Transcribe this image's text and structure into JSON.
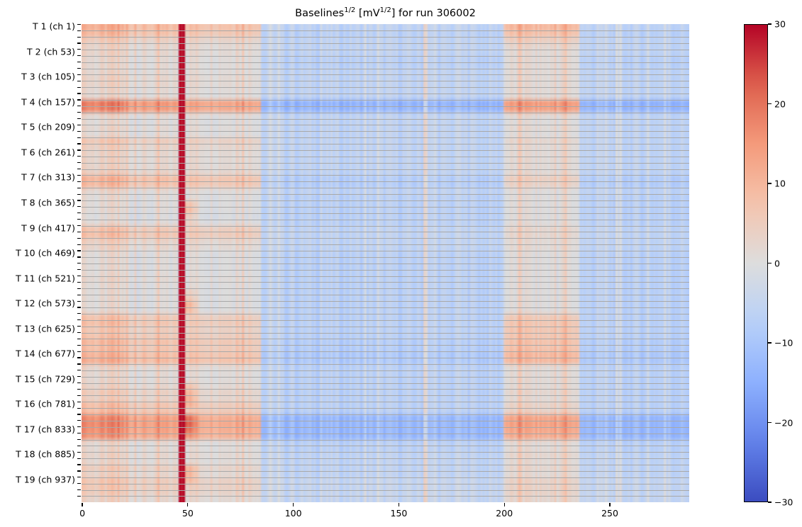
{
  "chart_data": {
    "type": "heatmap",
    "title_parts": {
      "base": "Baselines",
      "exp1": "1/2",
      "mid": " [mV",
      "exp2": "1/2",
      "end": "] for run 306002"
    },
    "title": "Baselines^1/2 [mV^1/2] for run 306002",
    "n_columns": 288,
    "n_channels": 988,
    "channels_per_row_group": 13,
    "xlim": [
      0,
      288
    ],
    "x_ticks": [
      0,
      50,
      100,
      150,
      200,
      250
    ],
    "y_tick_labels": [
      "T 1 (ch 1)",
      "T 2 (ch 53)",
      "T 3 (ch 105)",
      "T 4 (ch 157)",
      "T 5 (ch 209)",
      "T 6 (ch 261)",
      "T 7 (ch 313)",
      "T 8 (ch 365)",
      "T 9 (ch 417)",
      "T 10 (ch 469)",
      "T 11 (ch 521)",
      "T 12 (ch 573)",
      "T 13 (ch 625)",
      "T 14 (ch 677)",
      "T 15 (ch 729)",
      "T 16 (ch 781)",
      "T 17 (ch 833)",
      "T 18 (ch 885)",
      "T 19 (ch 937)"
    ],
    "y_tick_channels": [
      1,
      53,
      105,
      157,
      209,
      261,
      313,
      365,
      417,
      469,
      521,
      573,
      625,
      677,
      729,
      781,
      833,
      885,
      937
    ],
    "colorbar": {
      "cmap": "coolwarm",
      "vmin": -30,
      "vmax": 30,
      "ticks": [
        30,
        20,
        10,
        0,
        -10,
        -20,
        -30
      ]
    },
    "column_segments": {
      "left_a": [
        0,
        20
      ],
      "left_b": [
        20,
        46
      ],
      "hot_column": [
        46,
        49
      ],
      "left_c": [
        49,
        85
      ],
      "right_a": [
        85,
        162
      ],
      "spike": [
        162,
        164
      ],
      "right_b": [
        164,
        200
      ],
      "warm_block": [
        200,
        236
      ],
      "right_c": [
        236,
        288
      ]
    },
    "hot_column_value": 30,
    "row_groups": {
      "left_value": [
        11,
        9,
        5,
        3,
        3,
        2,
        2,
        2,
        3,
        3,
        2,
        2,
        18,
        17,
        2,
        1,
        2,
        1,
        6,
        4,
        3,
        3,
        3,
        4,
        10,
        9,
        2,
        1,
        1,
        1,
        0,
        1,
        7,
        8,
        4,
        3,
        1,
        1,
        1,
        1,
        2,
        1,
        1,
        1,
        1,
        1,
        7,
        8,
        6,
        7,
        9,
        8,
        10,
        11,
        3,
        2,
        2,
        3,
        5,
        4,
        8,
        8,
        16,
        17,
        16,
        15,
        2,
        2,
        3,
        2,
        5,
        3,
        6,
        6,
        5,
        3
      ],
      "right_value": [
        -6,
        -7,
        -6,
        -6,
        -6,
        -7,
        -7,
        -6,
        -6,
        -6,
        -6,
        -6,
        -14,
        -13,
        -6,
        -6,
        -6,
        -6,
        -6,
        -6,
        -6,
        -6,
        -6,
        -6,
        -8,
        -8,
        -6,
        -7,
        -7,
        -7,
        -7,
        -7,
        -6,
        -6,
        -6,
        -6,
        -7,
        -7,
        -7,
        -7,
        -7,
        -7,
        -7,
        -7,
        -7,
        -7,
        -7,
        -7,
        -7,
        -7,
        -8,
        -8,
        -9,
        -9,
        -7,
        -7,
        -7,
        -7,
        -7,
        -7,
        -7,
        -7,
        -13,
        -13,
        -13,
        -13,
        -7,
        -7,
        -6,
        -6,
        -6,
        -6,
        -5,
        -5,
        -5,
        -5
      ],
      "warm_block_value": [
        9,
        7,
        4,
        2,
        1,
        1,
        1,
        1,
        1,
        1,
        1,
        1,
        14,
        13,
        1,
        0,
        1,
        0,
        2,
        1,
        1,
        1,
        1,
        1,
        4,
        3,
        0,
        0,
        0,
        0,
        0,
        0,
        2,
        2,
        1,
        1,
        0,
        0,
        0,
        0,
        0,
        0,
        0,
        0,
        0,
        0,
        5,
        6,
        6,
        6,
        7,
        7,
        9,
        9,
        1,
        1,
        1,
        1,
        2,
        1,
        3,
        3,
        12,
        13,
        12,
        11,
        1,
        1,
        2,
        1,
        2,
        1,
        3,
        3,
        3,
        2
      ],
      "hot_bleed": [
        0,
        0,
        0,
        0,
        0,
        0,
        0,
        0,
        0,
        0,
        0,
        0,
        0,
        0,
        0,
        0,
        0,
        0,
        0,
        0,
        0,
        0,
        0,
        0,
        0,
        0,
        0,
        0,
        8,
        10,
        6,
        4,
        0,
        0,
        0,
        0,
        0,
        0,
        0,
        0,
        0,
        0,
        4,
        6,
        12,
        10,
        0,
        0,
        0,
        0,
        0,
        0,
        0,
        0,
        0,
        0,
        0,
        6,
        8,
        10,
        6,
        0,
        10,
        12,
        10,
        6,
        0,
        0,
        0,
        0,
        8,
        10,
        6,
        0,
        0,
        0
      ]
    }
  }
}
